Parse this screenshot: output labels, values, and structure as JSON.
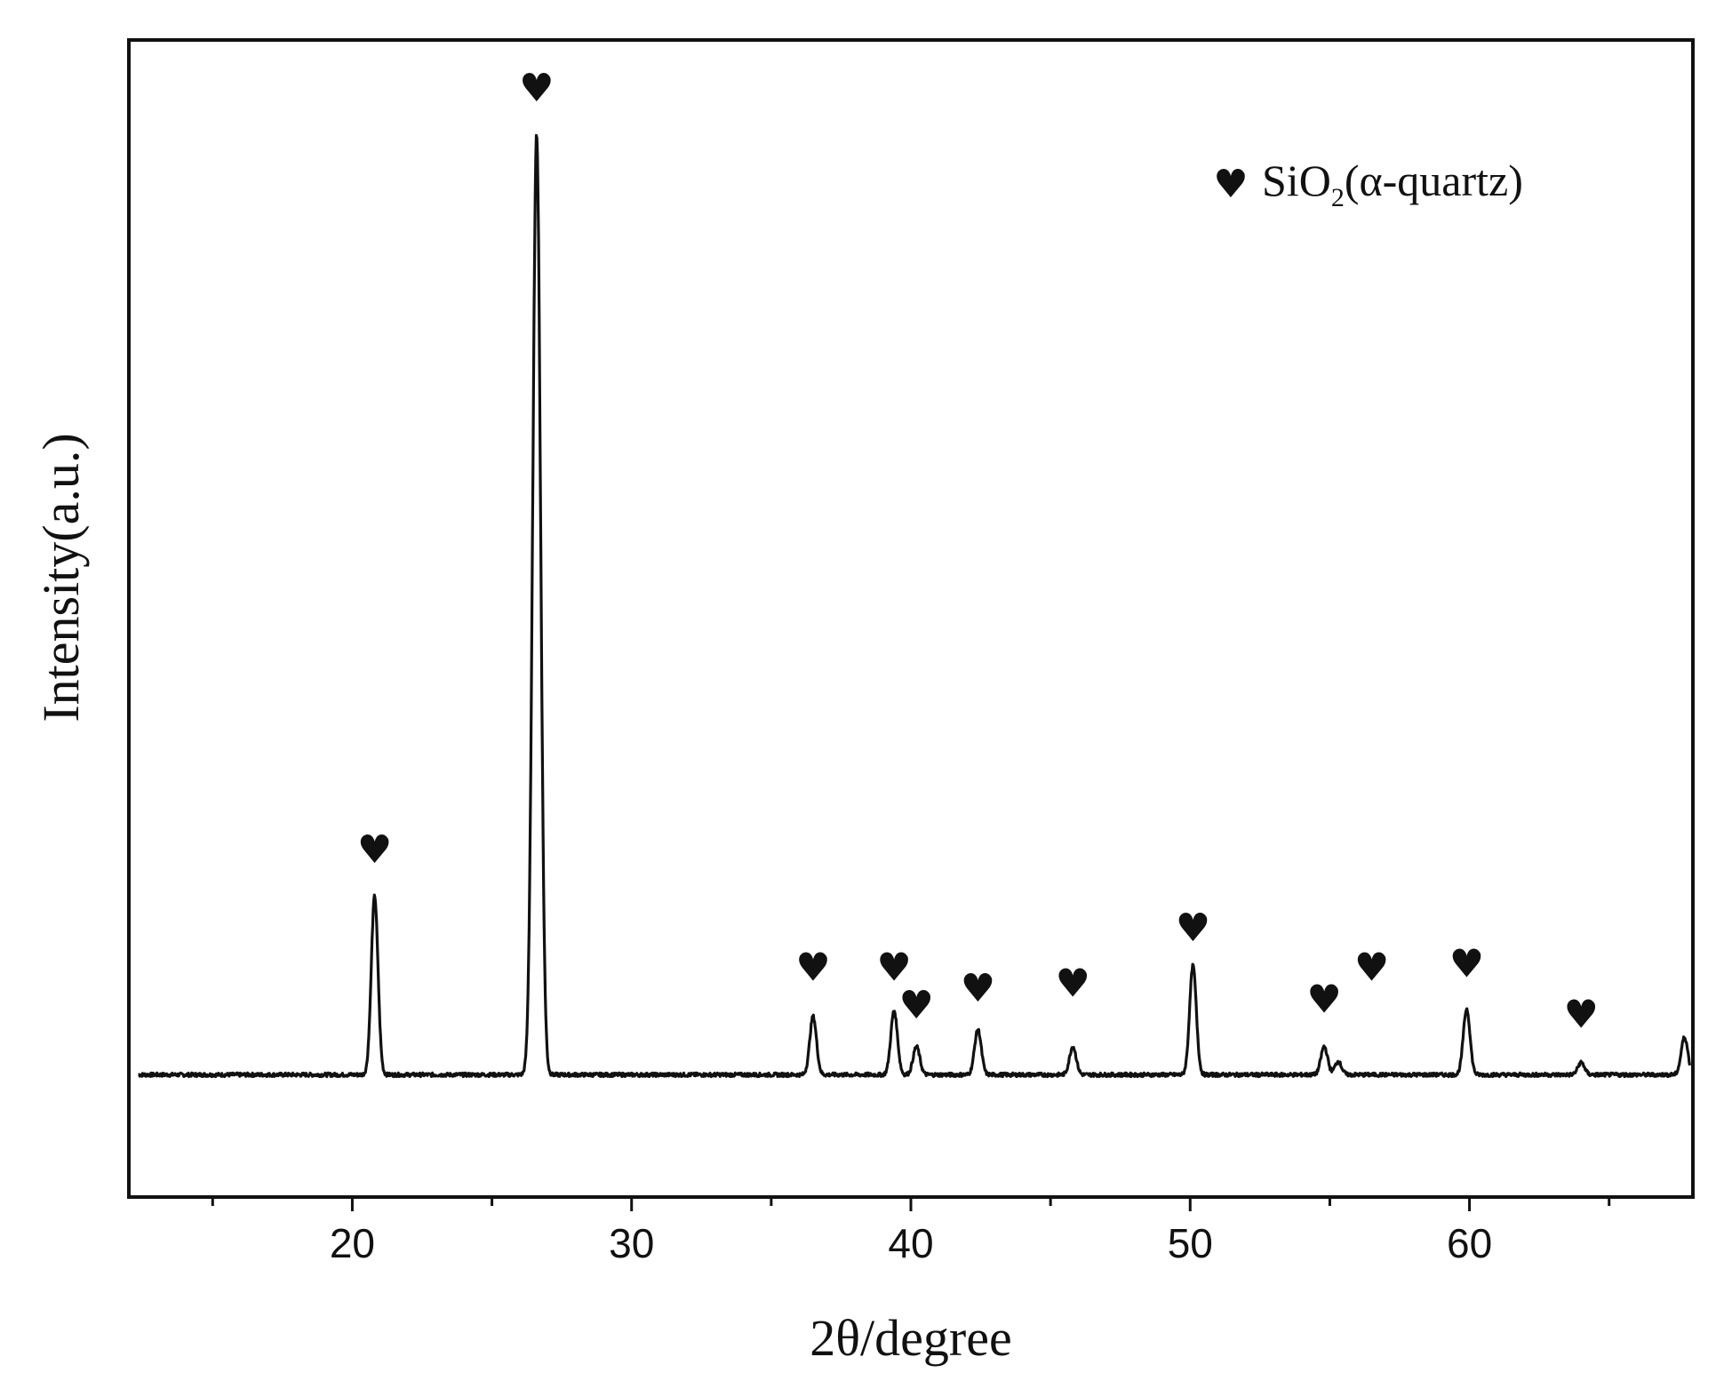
{
  "chart_data": {
    "type": "line",
    "xlabel": "2θ/degree",
    "ylabel": "Intensity(a.u.)",
    "xlim": [
      12,
      68
    ],
    "ylim": [
      -0.13,
      1.1
    ],
    "grid": false,
    "x_ticks": [
      20,
      30,
      40,
      50,
      60
    ],
    "x_minor_ticks": [
      15,
      25,
      35,
      45,
      55,
      65
    ],
    "tick_labels": [
      "20",
      "30",
      "40",
      "50",
      "60"
    ],
    "legend": {
      "position": "top-right",
      "marker": "♥",
      "formula": "SiO",
      "subscript": "2",
      "phase": "(α-quartz)"
    },
    "baseline": 0.0,
    "series": [
      {
        "peaks": [
          {
            "x": 20.8,
            "y": 0.19
          },
          {
            "x": 26.6,
            "y": 1.0
          },
          {
            "x": 36.5,
            "y": 0.062
          },
          {
            "x": 39.4,
            "y": 0.068
          },
          {
            "x": 40.2,
            "y": 0.03
          },
          {
            "x": 42.4,
            "y": 0.048
          },
          {
            "x": 45.8,
            "y": 0.03
          },
          {
            "x": 50.1,
            "y": 0.116
          },
          {
            "x": 54.8,
            "y": 0.03
          },
          {
            "x": 55.3,
            "y": 0.014
          },
          {
            "x": 59.9,
            "y": 0.07
          },
          {
            "x": 64.0,
            "y": 0.013
          },
          {
            "x": 67.7,
            "y": 0.04
          }
        ]
      }
    ],
    "annotations": [
      {
        "label": "♥",
        "x": 20.8,
        "y": 0.225
      },
      {
        "label": "♥",
        "x": 26.6,
        "y": 1.035
      },
      {
        "label": "♥",
        "x": 36.5,
        "y": 0.1
      },
      {
        "label": "♥",
        "x": 39.4,
        "y": 0.1
      },
      {
        "label": "♥",
        "x": 40.2,
        "y": 0.06
      },
      {
        "label": "♥",
        "x": 42.4,
        "y": 0.078
      },
      {
        "label": "♥",
        "x": 45.8,
        "y": 0.083
      },
      {
        "label": "♥",
        "x": 50.1,
        "y": 0.142
      },
      {
        "label": "♥",
        "x": 54.8,
        "y": 0.066
      },
      {
        "label": "♥",
        "x": 56.5,
        "y": 0.1
      },
      {
        "label": "♥",
        "x": 59.9,
        "y": 0.104
      },
      {
        "label": "♥",
        "x": 64.0,
        "y": 0.05
      }
    ]
  }
}
